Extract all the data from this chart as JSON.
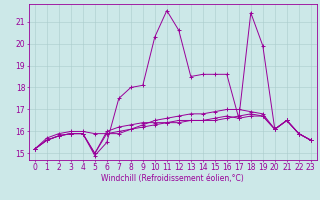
{
  "xlabel": "Windchill (Refroidissement éolien,°C)",
  "bg_color": "#cce8e8",
  "grid_color": "#aacccc",
  "line_color": "#990099",
  "xlim_min": -0.5,
  "xlim_max": 23.5,
  "ylim_min": 14.7,
  "ylim_max": 21.8,
  "yticks": [
    15,
    16,
    17,
    18,
    19,
    20,
    21
  ],
  "xticks": [
    0,
    1,
    2,
    3,
    4,
    5,
    6,
    7,
    8,
    9,
    10,
    11,
    12,
    13,
    14,
    15,
    16,
    17,
    18,
    19,
    20,
    21,
    22,
    23
  ],
  "series1_x": [
    0,
    1,
    2,
    3,
    4,
    5,
    6,
    7,
    8,
    9,
    10,
    11,
    12,
    13,
    14,
    15,
    16,
    17,
    18,
    19,
    20,
    21,
    22,
    23
  ],
  "series1_y": [
    15.2,
    15.6,
    15.8,
    15.9,
    15.9,
    14.9,
    15.5,
    17.5,
    18.0,
    18.1,
    20.3,
    21.5,
    20.6,
    18.5,
    18.6,
    18.6,
    18.6,
    16.6,
    21.4,
    19.9,
    16.1,
    16.5,
    15.9,
    15.6
  ],
  "series2_x": [
    0,
    1,
    2,
    3,
    4,
    5,
    6,
    7,
    8,
    9,
    10,
    11,
    12,
    13,
    14,
    15,
    16,
    17,
    18,
    19,
    20,
    21,
    22,
    23
  ],
  "series2_y": [
    15.2,
    15.6,
    15.8,
    15.9,
    15.9,
    15.0,
    15.9,
    15.9,
    16.1,
    16.2,
    16.3,
    16.4,
    16.4,
    16.5,
    16.5,
    16.5,
    16.6,
    16.7,
    16.8,
    16.7,
    16.1,
    16.5,
    15.9,
    15.6
  ],
  "series3_x": [
    0,
    1,
    2,
    3,
    4,
    5,
    6,
    7,
    8,
    9,
    10,
    11,
    12,
    13,
    14,
    15,
    16,
    17,
    18,
    19,
    20,
    21,
    22,
    23
  ],
  "series3_y": [
    15.2,
    15.7,
    15.9,
    16.0,
    16.0,
    15.9,
    15.9,
    16.0,
    16.1,
    16.3,
    16.5,
    16.6,
    16.7,
    16.8,
    16.8,
    16.9,
    17.0,
    17.0,
    16.9,
    16.8,
    16.1,
    16.5,
    15.9,
    15.6
  ],
  "series4_x": [
    0,
    1,
    2,
    3,
    4,
    5,
    6,
    7,
    8,
    9,
    10,
    11,
    12,
    13,
    14,
    15,
    16,
    17,
    18,
    19,
    20,
    21,
    22,
    23
  ],
  "series4_y": [
    15.2,
    15.6,
    15.8,
    15.9,
    15.9,
    15.0,
    16.0,
    16.2,
    16.3,
    16.4,
    16.4,
    16.4,
    16.5,
    16.5,
    16.5,
    16.6,
    16.7,
    16.6,
    16.7,
    16.7,
    16.1,
    16.5,
    15.9,
    15.6
  ],
  "tick_fontsize": 5.5,
  "xlabel_fontsize": 5.5,
  "line_width": 0.7,
  "marker_size": 2.5
}
